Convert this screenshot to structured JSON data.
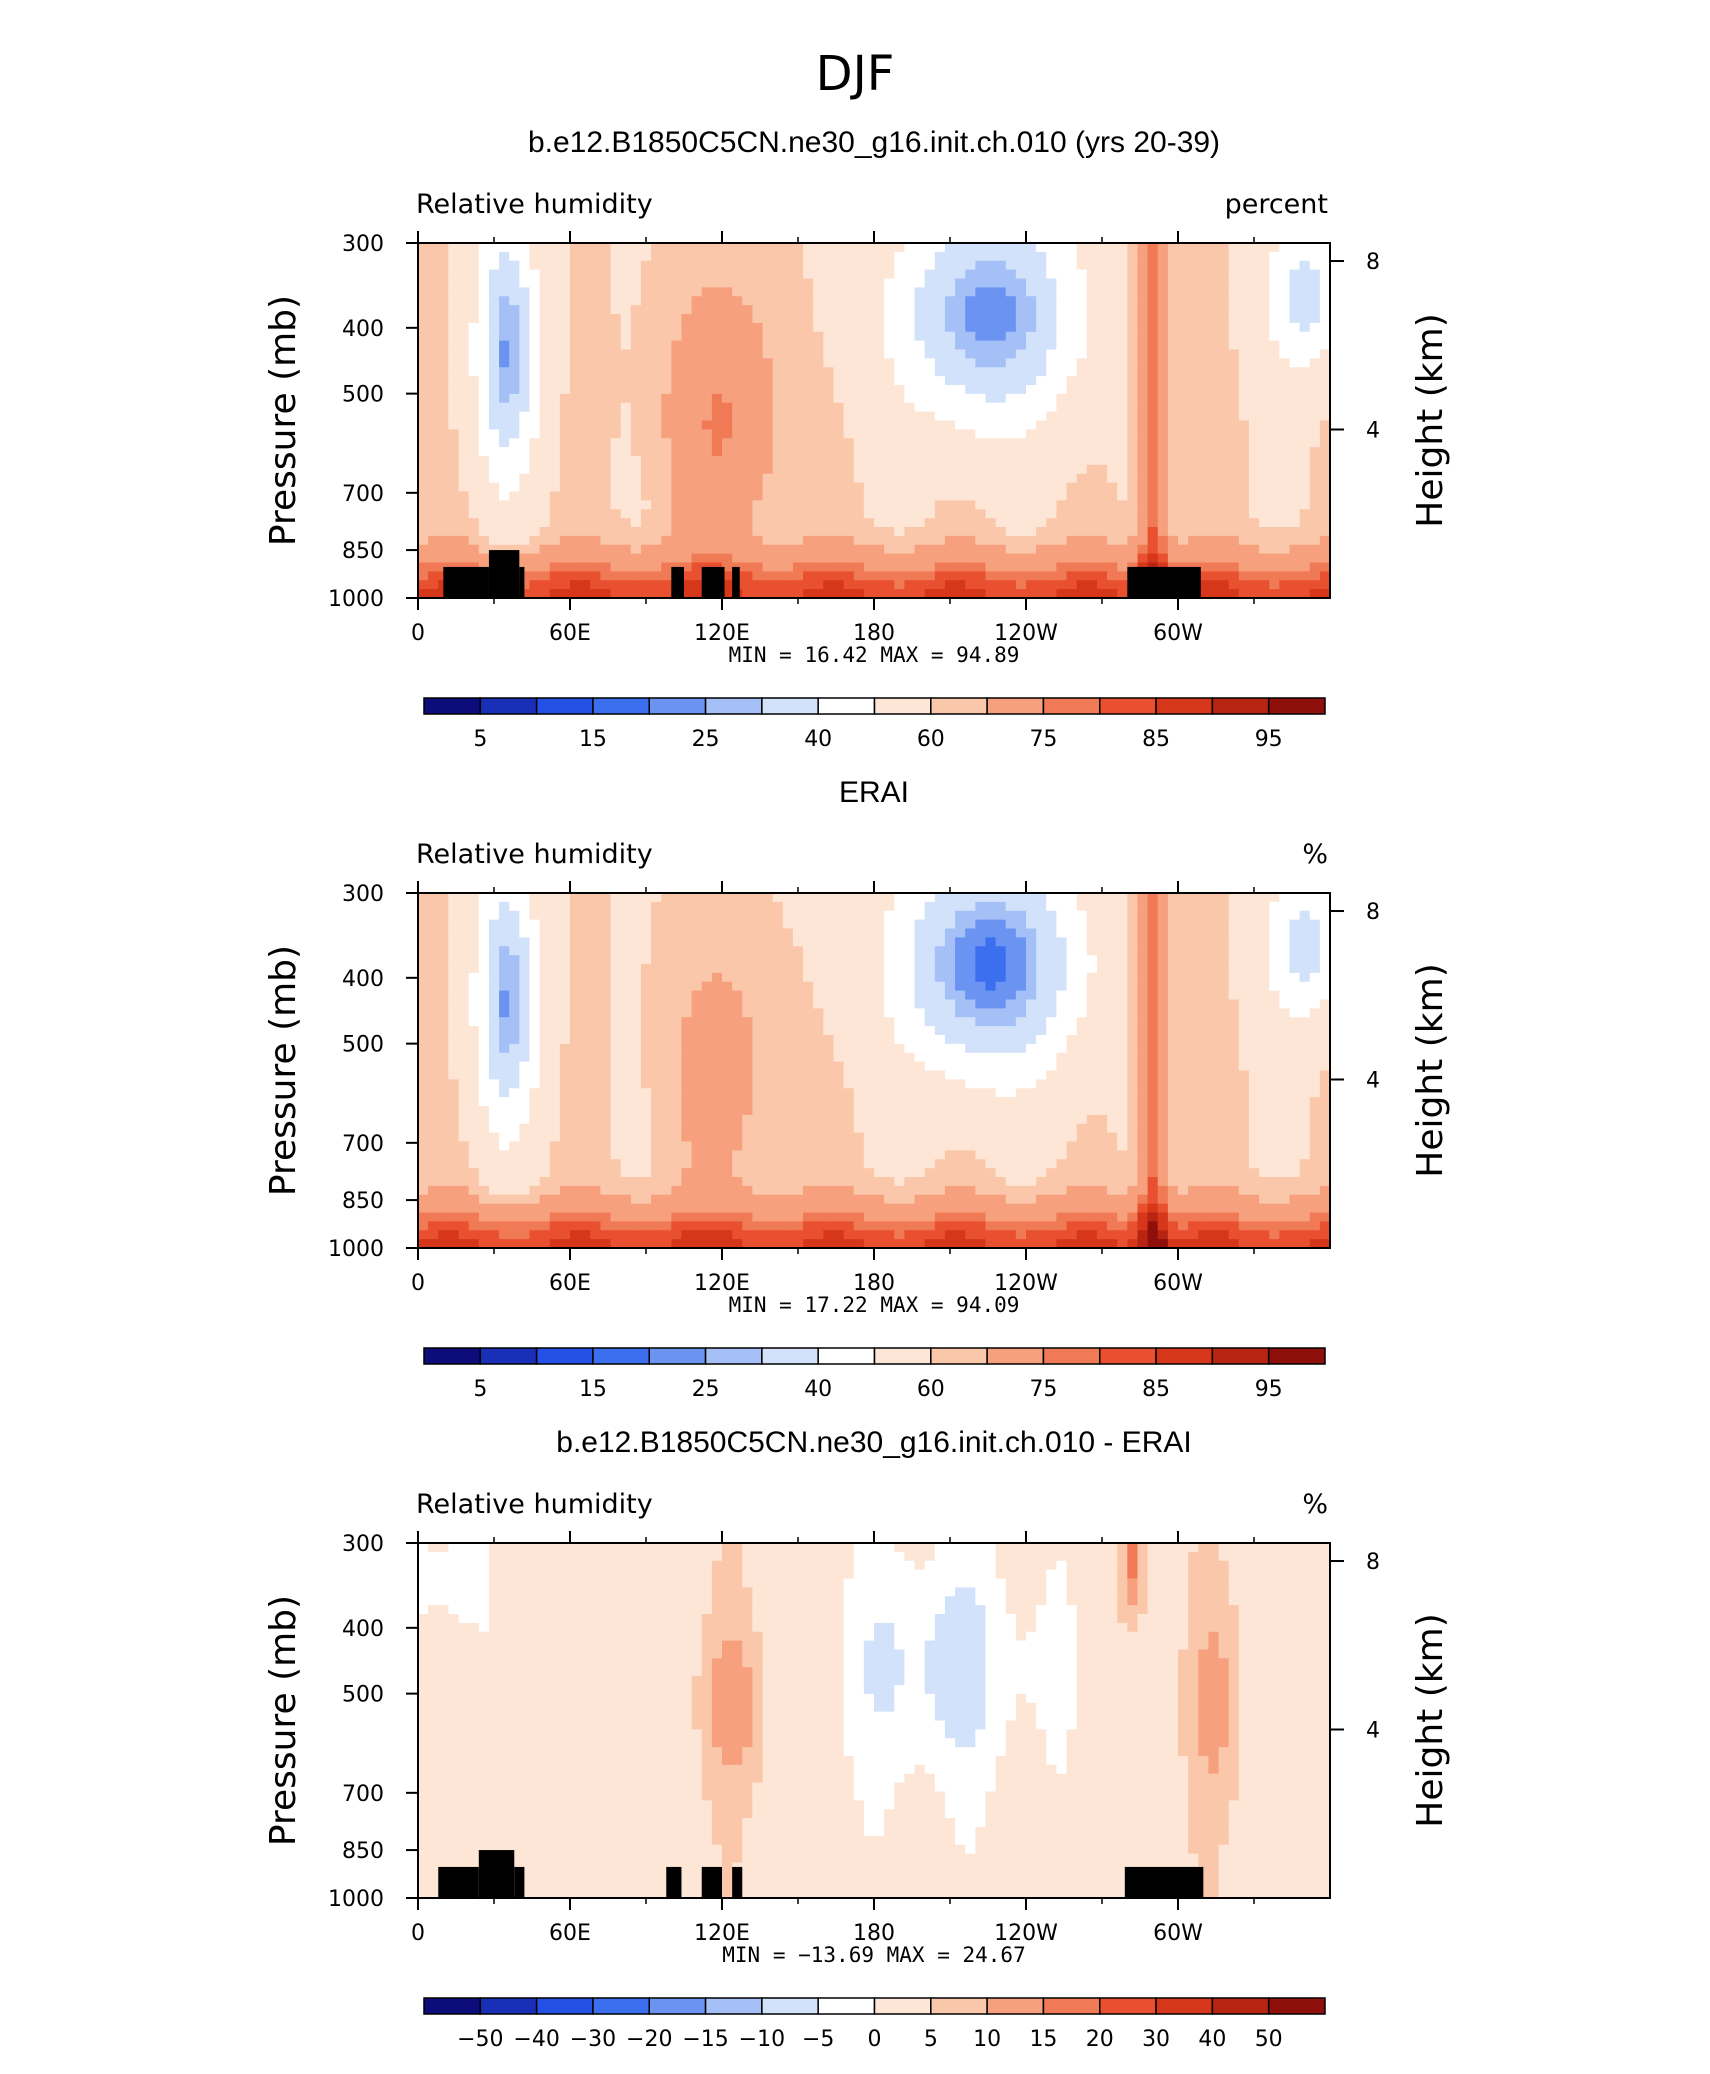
{
  "figure": {
    "title": "DJF"
  },
  "colors": {
    "abs_palette": [
      "#0c0c7a",
      "#1a2fb8",
      "#2450e6",
      "#3b6ff0",
      "#6b94f2",
      "#a4c0f6",
      "#d2e2fb",
      "#ffffff",
      "#fde6d6",
      "#fbc7aa",
      "#f6a07e",
      "#f07a55",
      "#e85030",
      "#d6361a",
      "#b82412",
      "#8f0f0a"
    ],
    "diff_palette": [
      "#0c0c7a",
      "#1a2fb8",
      "#2450e6",
      "#3b6ff0",
      "#6b94f2",
      "#a4c0f6",
      "#d2e2fb",
      "#ffffff",
      "#fde6d6",
      "#fbc7aa",
      "#f6a07e",
      "#f07a55",
      "#e85030",
      "#d6361a",
      "#b82412",
      "#8f0f0a"
    ],
    "topography": "#000000"
  },
  "chart_data": [
    {
      "type": "heatmap",
      "title": "b.e12.B1850C5CN.ne30_g16.init.ch.010 (yrs 20-39)",
      "left_label": "Relative humidity",
      "right_label": "percent",
      "ylabel": "Pressure (mb)",
      "ylabel_right": "Height (km)",
      "xlabel": "",
      "x_ticks": [
        "0",
        "60E",
        "120E",
        "180",
        "120W",
        "60W"
      ],
      "y_ticks": [
        "300",
        "400",
        "500",
        "700",
        "850",
        "1000"
      ],
      "y_ticks_right": [
        "8",
        "4"
      ],
      "xlim": [
        0,
        360
      ],
      "ylim": [
        1000,
        300
      ],
      "min_label": "MIN =",
      "min_value": "16.42",
      "max_label": "MAX =",
      "max_value": "94.89",
      "colorbar_labels": [
        "5",
        "15",
        "25",
        "40",
        "60",
        "75",
        "85",
        "95"
      ],
      "topography": [
        [
          10,
          28,
          900
        ],
        [
          28,
          40,
          850
        ],
        [
          40,
          42,
          900
        ],
        [
          100,
          105,
          900
        ],
        [
          112,
          121,
          900
        ],
        [
          124,
          127,
          900
        ],
        [
          280,
          309,
          900
        ]
      ]
    },
    {
      "type": "heatmap",
      "title": "ERAI",
      "left_label": "Relative humidity",
      "right_label": "%",
      "ylabel": "Pressure (mb)",
      "ylabel_right": "Height (km)",
      "xlabel": "",
      "x_ticks": [
        "0",
        "60E",
        "120E",
        "180",
        "120W",
        "60W"
      ],
      "y_ticks": [
        "300",
        "400",
        "500",
        "700",
        "850",
        "1000"
      ],
      "y_ticks_right": [
        "8",
        "4"
      ],
      "xlim": [
        0,
        360
      ],
      "ylim": [
        1000,
        300
      ],
      "min_label": "MIN =",
      "min_value": "17.22",
      "max_label": "MAX =",
      "max_value": "94.09",
      "colorbar_labels": [
        "5",
        "15",
        "25",
        "40",
        "60",
        "75",
        "85",
        "95"
      ],
      "topography": []
    },
    {
      "type": "heatmap",
      "title": "b.e12.B1850C5CN.ne30_g16.init.ch.010 - ERAI",
      "left_label": "Relative humidity",
      "right_label": "%",
      "ylabel": "Pressure (mb)",
      "ylabel_right": "Height (km)",
      "xlabel": "",
      "x_ticks": [
        "0",
        "60E",
        "120E",
        "180",
        "120W",
        "60W"
      ],
      "y_ticks": [
        "300",
        "400",
        "500",
        "700",
        "850",
        "1000"
      ],
      "y_ticks_right": [
        "8",
        "4"
      ],
      "xlim": [
        0,
        360
      ],
      "ylim": [
        1000,
        300
      ],
      "min_label": "MIN =",
      "min_value": "−13.69",
      "max_label": "MAX =",
      "max_value": "24.67",
      "colorbar_labels": [
        "−50",
        "−40",
        "−30",
        "−20",
        "−15",
        "−10",
        "−5",
        "0",
        "5",
        "10",
        "15",
        "20",
        "30",
        "40",
        "50"
      ],
      "topography": [
        [
          8,
          24,
          900
        ],
        [
          24,
          38,
          850
        ],
        [
          38,
          42,
          900
        ],
        [
          98,
          104,
          900
        ],
        [
          112,
          120,
          900
        ],
        [
          124,
          128,
          900
        ],
        [
          279,
          310,
          900
        ]
      ]
    }
  ]
}
